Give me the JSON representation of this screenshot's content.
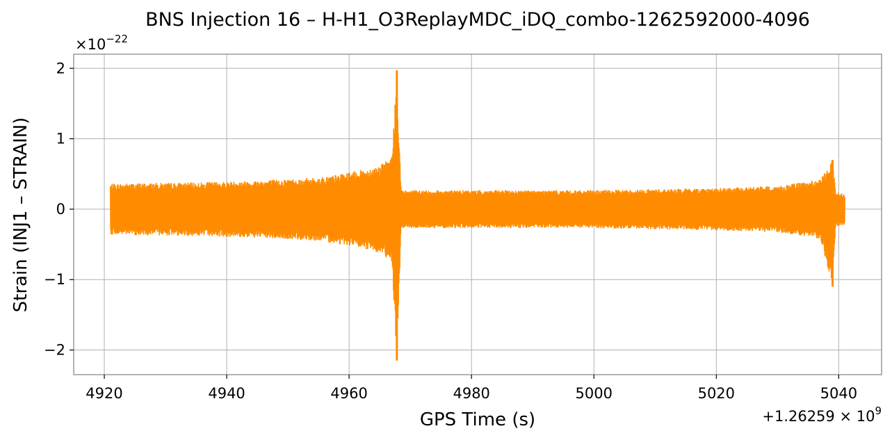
{
  "chart_data": {
    "type": "line",
    "title": "BNS Injection 16 – H-H1_O3ReplayMDC_iDQ_combo-1262592000-4096",
    "xlabel": "GPS Time (s)",
    "ylabel": "Strain (INJ1 – STRAIN)",
    "x_offset_text": "+1.26259 × 10",
    "x_offset_exp": "9",
    "y_scale_text": "×10",
    "y_scale_exp": "−22",
    "xlim": [
      4915,
      5047
    ],
    "ylim": [
      -2.35,
      2.2
    ],
    "x_ticks": [
      4920,
      4940,
      4960,
      4980,
      5000,
      5020,
      5040
    ],
    "x_tick_labels": [
      "4920",
      "4940",
      "4960",
      "4980",
      "5000",
      "5020",
      "5040"
    ],
    "y_ticks": [
      2,
      1,
      0,
      -1,
      -2
    ],
    "y_tick_labels": [
      "2",
      "1",
      "0",
      "−1",
      "−2"
    ],
    "grid": true,
    "series": [
      {
        "color": "#ff8c00",
        "x_range": [
          4921,
          5041
        ],
        "envelope": [
          {
            "x": 4921,
            "upper": 0.36,
            "lower": -0.36
          },
          {
            "x": 4925,
            "upper": 0.37,
            "lower": -0.37
          },
          {
            "x": 4935,
            "upper": 0.38,
            "lower": -0.38
          },
          {
            "x": 4945,
            "upper": 0.41,
            "lower": -0.41
          },
          {
            "x": 4955,
            "upper": 0.45,
            "lower": -0.45
          },
          {
            "x": 4960,
            "upper": 0.52,
            "lower": -0.52
          },
          {
            "x": 4965,
            "upper": 0.62,
            "lower": -0.62
          },
          {
            "x": 4967,
            "upper": 0.75,
            "lower": -0.75
          },
          {
            "x": 4967.8,
            "upper": 1.97,
            "lower": -2.15
          },
          {
            "x": 4968.5,
            "upper": 0.27,
            "lower": -0.27
          },
          {
            "x": 4980,
            "upper": 0.27,
            "lower": -0.27
          },
          {
            "x": 5000,
            "upper": 0.27,
            "lower": -0.27
          },
          {
            "x": 5020,
            "upper": 0.3,
            "lower": -0.3
          },
          {
            "x": 5030,
            "upper": 0.33,
            "lower": -0.33
          },
          {
            "x": 5037,
            "upper": 0.42,
            "lower": -0.42
          },
          {
            "x": 5039,
            "upper": 0.7,
            "lower": -1.1
          },
          {
            "x": 5039.5,
            "upper": 0.25,
            "lower": -0.25
          },
          {
            "x": 5041,
            "upper": 0.22,
            "lower": -0.22
          }
        ]
      }
    ]
  }
}
